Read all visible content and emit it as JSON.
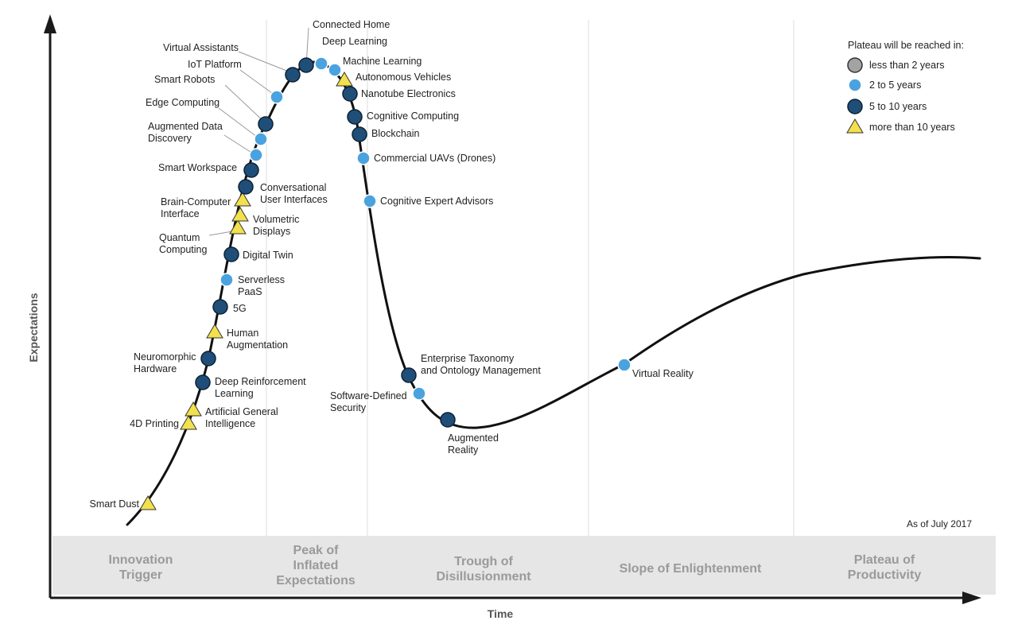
{
  "axes": {
    "y_label": "Expectations",
    "x_label": "Time"
  },
  "note": "As of July 2017",
  "legend": {
    "title": "Plateau will be reached in:",
    "items": [
      {
        "key": "lt2",
        "label": "less than 2 years",
        "marker": "circle",
        "color": "#a3a3a3"
      },
      {
        "key": "2to5",
        "label": "2 to 5 years",
        "marker": "circle",
        "color": "#4aa3de"
      },
      {
        "key": "5to10",
        "label": "5 to 10 years",
        "marker": "circle",
        "color": "#1f4e79"
      },
      {
        "key": "gt10",
        "label": "more than 10 years",
        "marker": "triangle",
        "color": "#f2e14c"
      }
    ]
  },
  "phases": [
    {
      "key": "innovation-trigger",
      "lines": [
        "Innovation",
        "Trigger"
      ]
    },
    {
      "key": "peak-of-inflated-expectations",
      "lines": [
        "Peak of",
        "Inflated",
        "Expectations"
      ]
    },
    {
      "key": "trough-of-disillusionment",
      "lines": [
        "Trough of",
        "Disillusionment"
      ]
    },
    {
      "key": "slope-of-enlightenment",
      "lines": [
        "Slope of Enlightenment"
      ]
    },
    {
      "key": "plateau-of-productivity",
      "lines": [
        "Plateau of",
        "Productivity"
      ]
    }
  ],
  "technologies": [
    {
      "key": "smart-dust",
      "label": [
        "Smart Dust"
      ],
      "category": "gt10"
    },
    {
      "key": "4d-printing",
      "label": [
        "4D Printing"
      ],
      "category": "gt10"
    },
    {
      "key": "artificial-general-intelligence",
      "label": [
        "Artificial General",
        "Intelligence"
      ],
      "category": "gt10"
    },
    {
      "key": "deep-reinforcement-learning",
      "label": [
        "Deep Reinforcement",
        "Learning"
      ],
      "category": "5to10"
    },
    {
      "key": "neuromorphic-hardware",
      "label": [
        "Neuromorphic",
        "Hardware"
      ],
      "category": "5to10"
    },
    {
      "key": "human-augmentation",
      "label": [
        "Human",
        "Augmentation"
      ],
      "category": "gt10"
    },
    {
      "key": "5g",
      "label": [
        "5G"
      ],
      "category": "5to10"
    },
    {
      "key": "serverless-paas",
      "label": [
        "Serverless",
        "PaaS"
      ],
      "category": "2to5"
    },
    {
      "key": "digital-twin",
      "label": [
        "Digital Twin"
      ],
      "category": "5to10"
    },
    {
      "key": "quantum-computing",
      "label": [
        "Quantum",
        "Computing"
      ],
      "category": "gt10"
    },
    {
      "key": "volumetric-displays",
      "label": [
        "Volumetric",
        "Displays"
      ],
      "category": "gt10"
    },
    {
      "key": "brain-computer-interface",
      "label": [
        "Brain-Computer",
        "Interface"
      ],
      "category": "gt10"
    },
    {
      "key": "conversational-user-interfaces",
      "label": [
        "Conversational",
        "User Interfaces"
      ],
      "category": "5to10"
    },
    {
      "key": "smart-workspace",
      "label": [
        "Smart Workspace"
      ],
      "category": "5to10"
    },
    {
      "key": "augmented-data-discovery",
      "label": [
        "Augmented Data",
        "Discovery"
      ],
      "category": "2to5"
    },
    {
      "key": "edge-computing",
      "label": [
        "Edge Computing"
      ],
      "category": "2to5"
    },
    {
      "key": "smart-robots",
      "label": [
        "Smart Robots"
      ],
      "category": "5to10"
    },
    {
      "key": "iot-platform",
      "label": [
        "IoT Platform"
      ],
      "category": "2to5"
    },
    {
      "key": "virtual-assistants",
      "label": [
        "Virtual Assistants"
      ],
      "category": "5to10"
    },
    {
      "key": "connected-home",
      "label": [
        "Connected Home"
      ],
      "category": "5to10"
    },
    {
      "key": "deep-learning",
      "label": [
        "Deep Learning"
      ],
      "category": "2to5"
    },
    {
      "key": "machine-learning",
      "label": [
        "Machine Learning"
      ],
      "category": "2to5"
    },
    {
      "key": "autonomous-vehicles",
      "label": [
        "Autonomous Vehicles"
      ],
      "category": "gt10"
    },
    {
      "key": "nanotube-electronics",
      "label": [
        "Nanotube Electronics"
      ],
      "category": "5to10"
    },
    {
      "key": "cognitive-computing",
      "label": [
        "Cognitive Computing"
      ],
      "category": "5to10"
    },
    {
      "key": "blockchain",
      "label": [
        "Blockchain"
      ],
      "category": "5to10"
    },
    {
      "key": "commercial-uavs-drones",
      "label": [
        "Commercial UAVs (Drones)"
      ],
      "category": "2to5"
    },
    {
      "key": "cognitive-expert-advisors",
      "label": [
        "Cognitive Expert Advisors"
      ],
      "category": "2to5"
    },
    {
      "key": "enterprise-taxonomy-and-ontology-management",
      "label": [
        "Enterprise Taxonomy",
        "and Ontology Management"
      ],
      "category": "5to10"
    },
    {
      "key": "software-defined-security",
      "label": [
        "Software-Defined",
        "Security"
      ],
      "category": "2to5"
    },
    {
      "key": "augmented-reality",
      "label": [
        "Augmented",
        "Reality"
      ],
      "category": "5to10"
    },
    {
      "key": "virtual-reality",
      "label": [
        "Virtual Reality"
      ],
      "category": "2to5"
    }
  ]
}
